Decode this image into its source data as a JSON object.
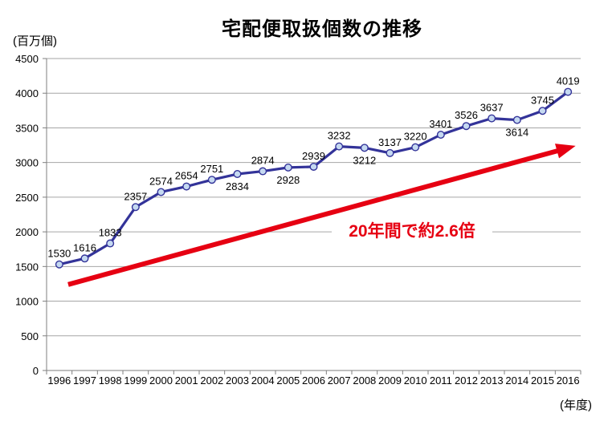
{
  "page": {
    "title": "宅配便取扱個数の推移",
    "y_axis_unit": "(百万個)",
    "x_axis_unit": "(年度)",
    "annotation_text": "20年間で約2.6倍"
  },
  "chart_data": {
    "type": "line",
    "title": "宅配便取扱個数の推移",
    "x": [
      "1996",
      "1997",
      "1998",
      "1999",
      "2000",
      "2001",
      "2002",
      "2003",
      "2004",
      "2005",
      "2006",
      "2007",
      "2008",
      "2009",
      "2010",
      "2011",
      "2012",
      "2013",
      "2014",
      "2015",
      "2016"
    ],
    "values": [
      1530,
      1616,
      1833,
      2357,
      2574,
      2654,
      2751,
      2834,
      2874,
      2928,
      2939,
      3232,
      3212,
      3137,
      3220,
      3401,
      3526,
      3637,
      3614,
      3745,
      4019
    ],
    "y_unit": "(百万個)",
    "x_unit": "(年度)",
    "ylim": [
      0,
      4500
    ],
    "ytick_interval": 500,
    "grid": true,
    "data_labels": true,
    "labels_below_indices": [
      7,
      9,
      12,
      18
    ],
    "legend": "none",
    "annotation": {
      "text": "20年間で約2.6倍",
      "arrow": {
        "from_index": 0.35,
        "from_value": 1240,
        "to_index": 20.3,
        "to_value": 3240
      }
    },
    "colors": {
      "line": "#333399",
      "marker_fill": "#c5d9f1",
      "marker_stroke": "#333399",
      "grid": "#a6a6a6",
      "axis": "#7f7f7f",
      "text": "#000000",
      "annotation": "#e60012"
    }
  }
}
